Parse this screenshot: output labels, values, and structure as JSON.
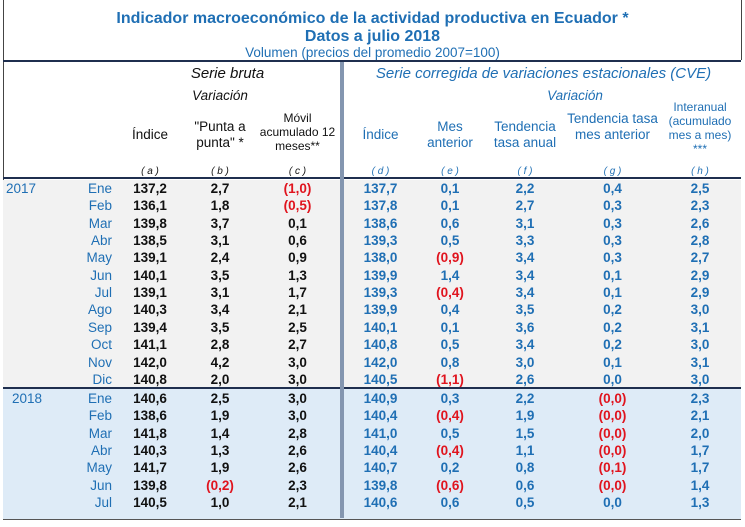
{
  "title": "Indicador macroeconómico de la actividad  productiva en Ecuador *",
  "subtitle": "Datos a julio   2018",
  "volume_note": "Volumen (precios del promedio 2007=100)",
  "headers": {
    "serie_bruta": "Serie bruta",
    "serie_cve": "Serie corregida de variaciones estacionales (CVE)",
    "variacion_bruta": "Variación",
    "variacion_cve": "Variación",
    "columns": [
      {
        "label": "Índice",
        "letter": "( a )"
      },
      {
        "label": "\"Punta a punta\" *",
        "letter": "( b )"
      },
      {
        "label": "Móvil acumulado 12 meses**",
        "letter": "( c )"
      },
      {
        "label": "Índice",
        "letter": "( d )"
      },
      {
        "label": "Mes anterior",
        "letter": "( e )"
      },
      {
        "label": "Tendencia tasa anual",
        "letter": "( f )"
      },
      {
        "label": "Tendencia tasa mes anterior",
        "letter": "( g )"
      },
      {
        "label": "Interanual (acumulado mes a mes) ***",
        "letter": "( h )"
      }
    ]
  },
  "colors": {
    "blue": "#1f6fb4",
    "negative": "#e0141e",
    "band_2017": "#f2f2f2",
    "band_2018": "#deebf7"
  },
  "years": [
    {
      "year": "2017",
      "rows": [
        {
          "month": "Ene",
          "values": [
            "137,2",
            "2,7",
            "(1,0)",
            "137,7",
            "0,1",
            "2,2",
            "0,4",
            "2,5"
          ]
        },
        {
          "month": "Feb",
          "values": [
            "136,1",
            "1,8",
            "(0,5)",
            "137,8",
            "0,1",
            "2,7",
            "0,3",
            "2,3"
          ]
        },
        {
          "month": "Mar",
          "values": [
            "139,8",
            "3,7",
            "0,1",
            "138,6",
            "0,6",
            "3,1",
            "0,3",
            "2,6"
          ]
        },
        {
          "month": "Abr",
          "values": [
            "138,5",
            "3,1",
            "0,6",
            "139,3",
            "0,5",
            "3,3",
            "0,3",
            "2,8"
          ]
        },
        {
          "month": "May",
          "values": [
            "139,1",
            "2,4",
            "0,9",
            "138,0",
            "(0,9)",
            "3,4",
            "0,3",
            "2,7"
          ]
        },
        {
          "month": "Jun",
          "values": [
            "140,1",
            "3,5",
            "1,3",
            "139,9",
            "1,4",
            "3,4",
            "0,1",
            "2,9"
          ]
        },
        {
          "month": "Jul",
          "values": [
            "139,1",
            "3,1",
            "1,7",
            "139,3",
            "(0,4)",
            "3,4",
            "0,1",
            "2,9"
          ]
        },
        {
          "month": "Ago",
          "values": [
            "140,3",
            "3,4",
            "2,1",
            "139,9",
            "0,4",
            "3,5",
            "0,2",
            "3,0"
          ]
        },
        {
          "month": "Sep",
          "values": [
            "139,4",
            "3,5",
            "2,5",
            "140,1",
            "0,1",
            "3,6",
            "0,2",
            "3,1"
          ]
        },
        {
          "month": "Oct",
          "values": [
            "141,1",
            "2,8",
            "2,7",
            "140,8",
            "0,5",
            "3,4",
            "0,2",
            "3,0"
          ]
        },
        {
          "month": "Nov",
          "values": [
            "142,0",
            "4,2",
            "3,0",
            "142,0",
            "0,8",
            "3,0",
            "0,1",
            "3,1"
          ]
        },
        {
          "month": "Dic",
          "values": [
            "140,8",
            "2,0",
            "3,0",
            "140,5",
            "(1,1)",
            "2,6",
            "0,0",
            "3,0"
          ]
        }
      ]
    },
    {
      "year": "2018",
      "rows": [
        {
          "month": "Ene",
          "values": [
            "140,6",
            "2,5",
            "3,0",
            "140,9",
            "0,3",
            "2,2",
            "(0,0)",
            "2,3"
          ]
        },
        {
          "month": "Feb",
          "values": [
            "138,6",
            "1,9",
            "3,0",
            "140,4",
            "(0,4)",
            "1,9",
            "(0,0)",
            "2,1"
          ]
        },
        {
          "month": "Mar",
          "values": [
            "141,8",
            "1,4",
            "2,8",
            "141,0",
            "0,5",
            "1,5",
            "(0,0)",
            "2,0"
          ]
        },
        {
          "month": "Abr",
          "values": [
            "140,3",
            "1,3",
            "2,6",
            "140,4",
            "(0,4)",
            "1,1",
            "(0,0)",
            "1,7"
          ]
        },
        {
          "month": "May",
          "values": [
            "141,7",
            "1,9",
            "2,6",
            "140,7",
            "0,2",
            "0,8",
            "(0,1)",
            "1,7"
          ]
        },
        {
          "month": "Jun",
          "values": [
            "139,8",
            "(0,2)",
            "2,3",
            "139,8",
            "(0,6)",
            "0,6",
            "(0,0)",
            "1,4"
          ]
        },
        {
          "month": "Jul",
          "values": [
            "140,5",
            "1,0",
            "2,1",
            "140,6",
            "0,6",
            "0,5",
            "0,0",
            "1,3"
          ]
        }
      ]
    }
  ]
}
